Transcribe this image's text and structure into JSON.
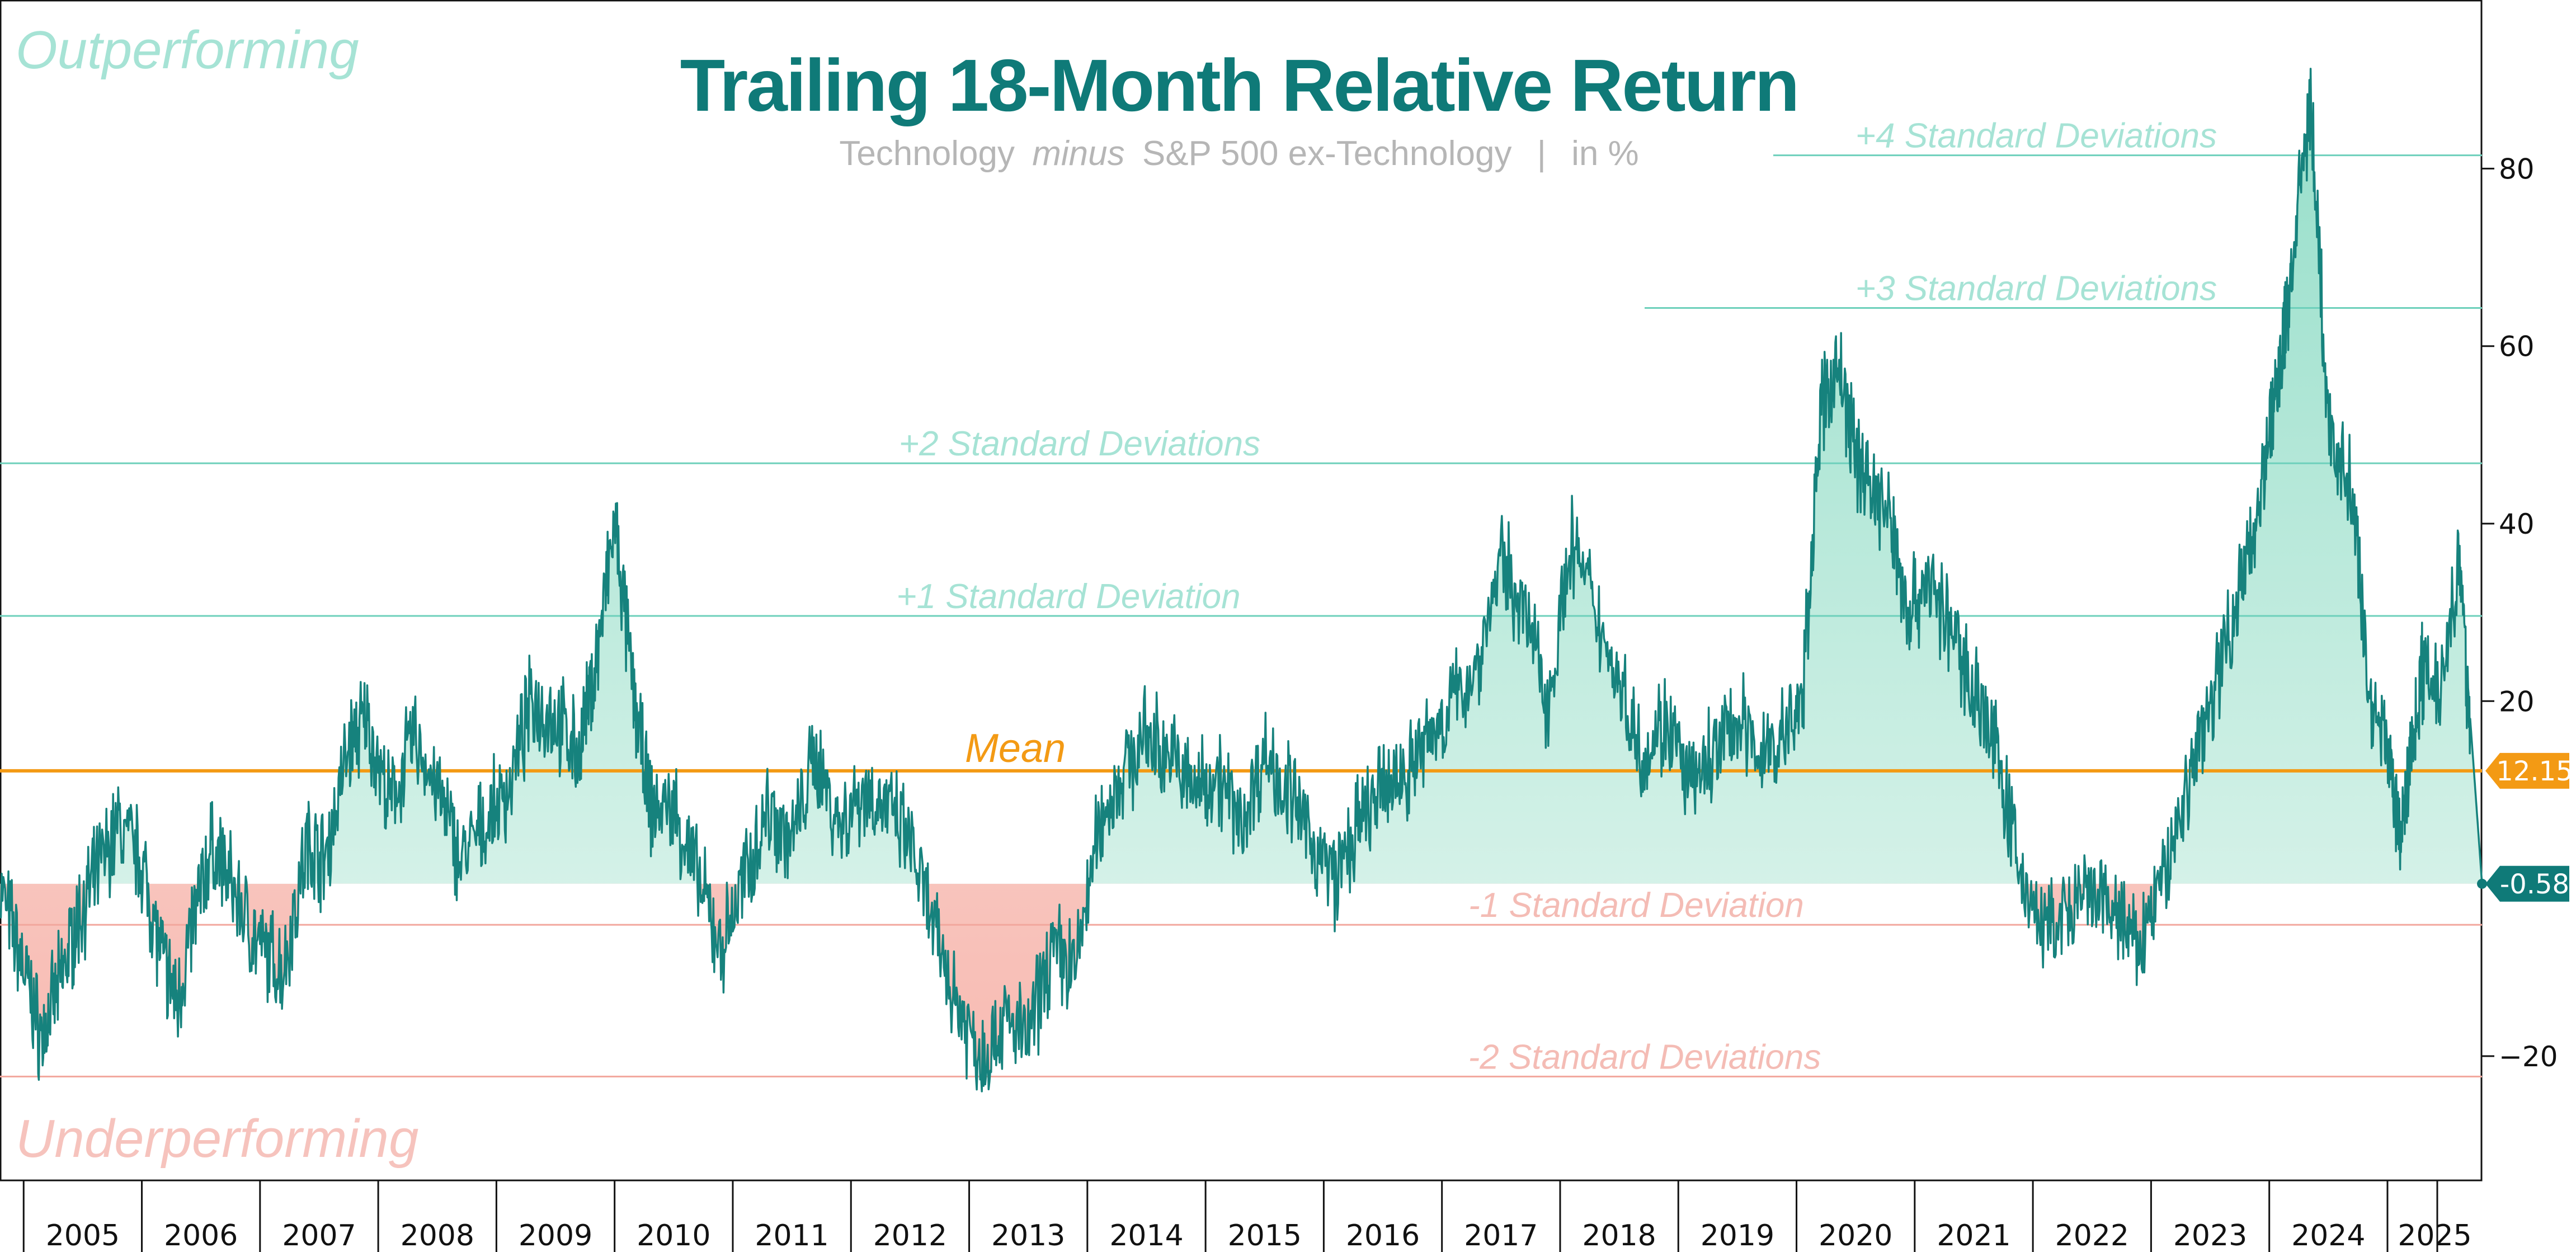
{
  "chart_data": {
    "type": "line",
    "title": "Trailing 18-Month Relative Return",
    "subtitle": {
      "part1": "Technology",
      "part2": "minus",
      "part3": "S&P 500 ex-Technology",
      "separator": "|",
      "unit": "in %"
    },
    "corner_labels": {
      "top": "Outperforming",
      "bottom": "Underperforming"
    },
    "ylim": [
      -34,
      99
    ],
    "y_ticks": [
      -20,
      20,
      40,
      60,
      80
    ],
    "y_tick_labels": [
      "−20",
      "20",
      "40",
      "60",
      "80"
    ],
    "x_range": [
      2004.8,
      2025.8
    ],
    "x_categories": [
      "2005",
      "2006",
      "2007",
      "2008",
      "2009",
      "2010",
      "2011",
      "2012",
      "2013",
      "2014",
      "2015",
      "2016",
      "2017",
      "2018",
      "2019",
      "2020",
      "2021",
      "2022",
      "2023",
      "2024",
      "2025"
    ],
    "mean": {
      "value": 12.15,
      "label": "Mean",
      "badge": "12.15"
    },
    "latest": {
      "value": -0.58,
      "badge": "-0.58"
    },
    "reference_lines": [
      {
        "name": "+4 Standard Deviations",
        "value": 81.5,
        "sign": "pos"
      },
      {
        "name": "+3 Standard Deviations",
        "value": 64.3,
        "sign": "pos"
      },
      {
        "name": "+2 Standard Deviations",
        "value": 46.8,
        "sign": "pos"
      },
      {
        "name": "+1 Standard Deviation",
        "value": 29.6,
        "sign": "pos"
      },
      {
        "name": "-1 Standard Deviation",
        "value": -5.2,
        "sign": "neg"
      },
      {
        "name": "-2 Standard Deviations",
        "value": -22.3,
        "sign": "neg"
      }
    ],
    "series": [
      {
        "name": "Technology minus S&P 500 ex-Technology",
        "x": [
          2004.8,
          2005.0,
          2005.15,
          2005.3,
          2005.45,
          2005.6,
          2005.8,
          2006.0,
          2006.15,
          2006.3,
          2006.45,
          2006.6,
          2006.8,
          2007.0,
          2007.2,
          2007.4,
          2007.55,
          2007.75,
          2007.9,
          2008.1,
          2008.3,
          2008.5,
          2008.7,
          2008.9,
          2009.1,
          2009.3,
          2009.5,
          2009.7,
          2009.85,
          2010.0,
          2010.15,
          2010.3,
          2010.5,
          2010.7,
          2010.9,
          2011.1,
          2011.3,
          2011.5,
          2011.7,
          2011.9,
          2012.1,
          2012.3,
          2012.5,
          2012.7,
          2012.9,
          2013.1,
          2013.3,
          2013.5,
          2013.7,
          2013.9,
          2014.1,
          2014.3,
          2014.5,
          2014.7,
          2014.9,
          2015.1,
          2015.3,
          2015.5,
          2015.7,
          2015.9,
          2016.1,
          2016.3,
          2016.5,
          2016.7,
          2016.9,
          2017.1,
          2017.3,
          2017.5,
          2017.7,
          2017.9,
          2018.1,
          2018.3,
          2018.5,
          2018.7,
          2018.9,
          2019.1,
          2019.3,
          2019.5,
          2019.7,
          2019.9,
          2020.05,
          2020.2,
          2020.35,
          2020.5,
          2020.65,
          2020.8,
          2020.95,
          2021.1,
          2021.3,
          2021.5,
          2021.7,
          2021.9,
          2022.1,
          2022.3,
          2022.5,
          2022.7,
          2022.9,
          2023.1,
          2023.3,
          2023.5,
          2023.7,
          2023.85,
          2024.0,
          2024.1,
          2024.2,
          2024.35,
          2024.5,
          2024.7,
          2024.85,
          2025.0,
          2025.1,
          2025.2,
          2025.3,
          2025.45,
          2025.6,
          2025.7,
          2025.8
        ],
        "values": [
          -1,
          -10,
          -18,
          -12,
          -5,
          0,
          6,
          2,
          -8,
          -14,
          -4,
          4,
          -2,
          -8,
          -10,
          4,
          2,
          15,
          18,
          8,
          16,
          10,
          2,
          6,
          10,
          20,
          18,
          14,
          25,
          40,
          22,
          8,
          8,
          0,
          -8,
          0,
          8,
          4,
          14,
          6,
          10,
          8,
          4,
          -6,
          -14,
          -20,
          -16,
          -18,
          -8,
          -10,
          6,
          12,
          16,
          14,
          10,
          12,
          6,
          14,
          10,
          4,
          0,
          6,
          10,
          12,
          16,
          20,
          24,
          36,
          30,
          20,
          38,
          30,
          22,
          14,
          18,
          10,
          14,
          18,
          14,
          16,
          20,
          52,
          58,
          48,
          44,
          40,
          30,
          34,
          28,
          22,
          14,
          0,
          -6,
          -4,
          -2,
          -4,
          -8,
          0,
          10,
          20,
          30,
          38,
          50,
          58,
          70,
          88,
          50,
          44,
          20,
          16,
          4,
          14,
          24,
          22,
          36,
          18,
          -0.58
        ]
      }
    ]
  }
}
